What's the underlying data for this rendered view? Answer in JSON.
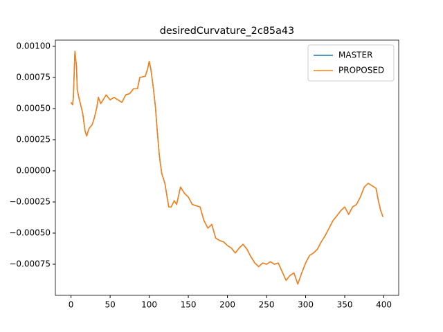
{
  "chart_data": {
    "type": "line",
    "title": "desiredCurvature_2c85a43",
    "x": [
      0,
      2,
      3,
      5,
      7,
      8,
      10,
      12,
      15,
      18,
      20,
      23,
      27,
      30,
      33,
      35,
      38,
      42,
      45,
      50,
      55,
      60,
      65,
      70,
      75,
      80,
      85,
      88,
      95,
      98,
      100,
      102,
      105,
      108,
      110,
      113,
      116,
      120,
      125,
      128,
      132,
      135,
      140,
      145,
      150,
      155,
      160,
      165,
      170,
      175,
      180,
      185,
      190,
      195,
      200,
      205,
      210,
      215,
      220,
      225,
      230,
      235,
      240,
      245,
      250,
      255,
      260,
      265,
      270,
      275,
      280,
      285,
      290,
      295,
      300,
      305,
      310,
      315,
      320,
      325,
      330,
      335,
      340,
      345,
      350,
      355,
      360,
      365,
      370,
      375,
      380,
      385,
      390,
      393,
      396,
      399
    ],
    "series": [
      {
        "name": "MASTER",
        "color": "#1f77b4",
        "values": [
          0.00055,
          0.00053,
          0.00059,
          0.00096,
          0.00084,
          0.00065,
          0.00059,
          0.00054,
          0.00046,
          0.00032,
          0.00028,
          0.00034,
          0.00037,
          0.00043,
          0.00051,
          0.00059,
          0.00054,
          0.00058,
          0.00061,
          0.00057,
          0.00059,
          0.00057,
          0.00055,
          0.00061,
          0.00062,
          0.00066,
          0.00066,
          0.00075,
          0.00076,
          0.00082,
          0.00088,
          0.00082,
          0.00068,
          0.00051,
          0.00034,
          0.00012,
          -2e-05,
          -0.0001,
          -0.00029,
          -0.00029,
          -0.00024,
          -0.00027,
          -0.00013,
          -0.00018,
          -0.00021,
          -0.00027,
          -0.00028,
          -0.00029,
          -0.0004,
          -0.00046,
          -0.00043,
          -0.00054,
          -0.00056,
          -0.00057,
          -0.0006,
          -0.00062,
          -0.00066,
          -0.00062,
          -0.00059,
          -0.00063,
          -0.00069,
          -0.00074,
          -0.00077,
          -0.00074,
          -0.00075,
          -0.00073,
          -0.00075,
          -0.00074,
          -0.00081,
          -0.00088,
          -0.00084,
          -0.00082,
          -0.00091,
          -0.00082,
          -0.00074,
          -0.00068,
          -0.00066,
          -0.00063,
          -0.00057,
          -0.00052,
          -0.00046,
          -0.0004,
          -0.00036,
          -0.00032,
          -0.00029,
          -0.00035,
          -0.00029,
          -0.00027,
          -0.00021,
          -0.00013,
          -0.0001,
          -0.00012,
          -0.00014,
          -0.00024,
          -0.00032,
          -0.00037
        ]
      },
      {
        "name": "PROPOSED",
        "color": "#ff7f0e",
        "values": [
          0.00055,
          0.00053,
          0.00059,
          0.00096,
          0.00084,
          0.00065,
          0.00059,
          0.00054,
          0.00046,
          0.00032,
          0.00028,
          0.00034,
          0.00037,
          0.00043,
          0.00051,
          0.00059,
          0.00054,
          0.00058,
          0.00061,
          0.00057,
          0.00059,
          0.00057,
          0.00055,
          0.00061,
          0.00062,
          0.00066,
          0.00066,
          0.00075,
          0.00076,
          0.00082,
          0.00088,
          0.00082,
          0.00068,
          0.00051,
          0.00034,
          0.00012,
          -2e-05,
          -0.0001,
          -0.00029,
          -0.00029,
          -0.00024,
          -0.00027,
          -0.00013,
          -0.00018,
          -0.00021,
          -0.00027,
          -0.00028,
          -0.00029,
          -0.0004,
          -0.00046,
          -0.00043,
          -0.00054,
          -0.00056,
          -0.00057,
          -0.0006,
          -0.00062,
          -0.00066,
          -0.00062,
          -0.00059,
          -0.00063,
          -0.00069,
          -0.00074,
          -0.00077,
          -0.00074,
          -0.00075,
          -0.00073,
          -0.00075,
          -0.00074,
          -0.00081,
          -0.00088,
          -0.00084,
          -0.00082,
          -0.00091,
          -0.00082,
          -0.00074,
          -0.00068,
          -0.00066,
          -0.00063,
          -0.00057,
          -0.00052,
          -0.00046,
          -0.0004,
          -0.00036,
          -0.00032,
          -0.00029,
          -0.00035,
          -0.00029,
          -0.00027,
          -0.00021,
          -0.00013,
          -0.0001,
          -0.00012,
          -0.00014,
          -0.00024,
          -0.00032,
          -0.00037
        ]
      }
    ],
    "xlim": [
      -20,
      419
    ],
    "xticks": [
      0,
      50,
      100,
      150,
      200,
      250,
      300,
      350,
      400
    ],
    "ylim": [
      -0.001,
      0.00105
    ],
    "yticks": [
      {
        "value": -0.00075,
        "label": "−0.00075"
      },
      {
        "value": -0.0005,
        "label": "−0.00050"
      },
      {
        "value": -0.00025,
        "label": "−0.00025"
      },
      {
        "value": 0,
        "label": "0.00000"
      },
      {
        "value": 0.00025,
        "label": "0.00025"
      },
      {
        "value": 0.0005,
        "label": "0.00050"
      },
      {
        "value": 0.00075,
        "label": "0.00075"
      },
      {
        "value": 0.001,
        "label": "0.00100"
      }
    ],
    "legend": "upper right"
  }
}
